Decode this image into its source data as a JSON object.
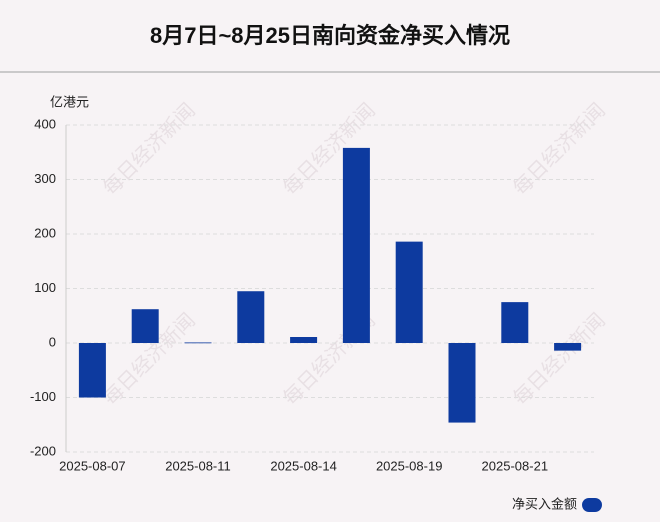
{
  "chart_data": {
    "type": "bar",
    "title": "8月7日~8月25日南向资金净买入情况",
    "y_axis_label": "亿港元",
    "watermark": "每日经济新闻",
    "categories": [
      "2025-08-07",
      null,
      "2025-08-11",
      null,
      "2025-08-14",
      null,
      "2025-08-19",
      null,
      "2025-08-21",
      null
    ],
    "series": [
      {
        "name": "净买入金额",
        "color": "#0d3a9f",
        "values": [
          -100,
          62,
          1,
          95,
          11,
          358,
          186,
          -146,
          75,
          -14
        ]
      }
    ],
    "ylim": [
      -200,
      400
    ],
    "yticks": [
      -200,
      -100,
      0,
      100,
      200,
      300,
      400
    ],
    "grid": true,
    "legend": "bottom-right"
  }
}
